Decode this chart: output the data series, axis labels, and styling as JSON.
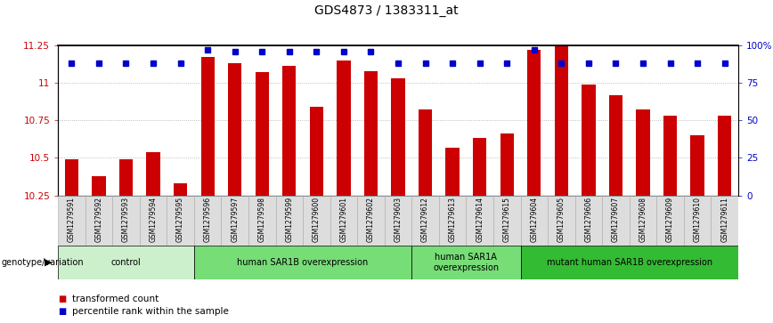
{
  "title": "GDS4873 / 1383311_at",
  "samples": [
    "GSM1279591",
    "GSM1279592",
    "GSM1279593",
    "GSM1279594",
    "GSM1279595",
    "GSM1279596",
    "GSM1279597",
    "GSM1279598",
    "GSM1279599",
    "GSM1279600",
    "GSM1279601",
    "GSM1279602",
    "GSM1279603",
    "GSM1279612",
    "GSM1279613",
    "GSM1279614",
    "GSM1279615",
    "GSM1279604",
    "GSM1279605",
    "GSM1279606",
    "GSM1279607",
    "GSM1279608",
    "GSM1279609",
    "GSM1279610",
    "GSM1279611"
  ],
  "bar_values": [
    10.49,
    10.38,
    10.49,
    10.54,
    10.33,
    11.17,
    11.13,
    11.07,
    11.11,
    10.84,
    11.15,
    11.08,
    11.03,
    10.82,
    10.57,
    10.63,
    10.66,
    11.22,
    11.25,
    10.99,
    10.92,
    10.82,
    10.78,
    10.65,
    10.78
  ],
  "percentile_values": [
    88,
    88,
    88,
    88,
    88,
    97,
    96,
    96,
    96,
    96,
    96,
    96,
    88,
    88,
    88,
    88,
    88,
    97,
    88,
    88,
    88,
    88,
    88,
    88,
    88
  ],
  "groups": [
    {
      "label": "control",
      "start": 0,
      "end": 5,
      "color": "#ccf0cc"
    },
    {
      "label": "human SAR1B overexpression",
      "start": 5,
      "end": 13,
      "color": "#77dd77"
    },
    {
      "label": "human SAR1A\noverexpression",
      "start": 13,
      "end": 17,
      "color": "#77dd77"
    },
    {
      "label": "mutant human SAR1B overexpression",
      "start": 17,
      "end": 25,
      "color": "#33bb33"
    }
  ],
  "bar_color": "#cc0000",
  "dot_color": "#0000cc",
  "ylim_left": [
    10.25,
    11.25
  ],
  "ylim_right": [
    0,
    100
  ],
  "yticks_left": [
    10.25,
    10.5,
    10.75,
    11.0,
    11.25
  ],
  "ytick_labels_left": [
    "10.25",
    "10.5",
    "10.75",
    "11",
    "11.25"
  ],
  "yticks_right": [
    0,
    25,
    50,
    75,
    100
  ],
  "ytick_labels_right": [
    "0",
    "25",
    "50",
    "75",
    "100%"
  ],
  "grid_color": "#aaaaaa",
  "group_colors": [
    "#ccf0cc",
    "#77dd77",
    "#77dd77",
    "#33bb33"
  ]
}
